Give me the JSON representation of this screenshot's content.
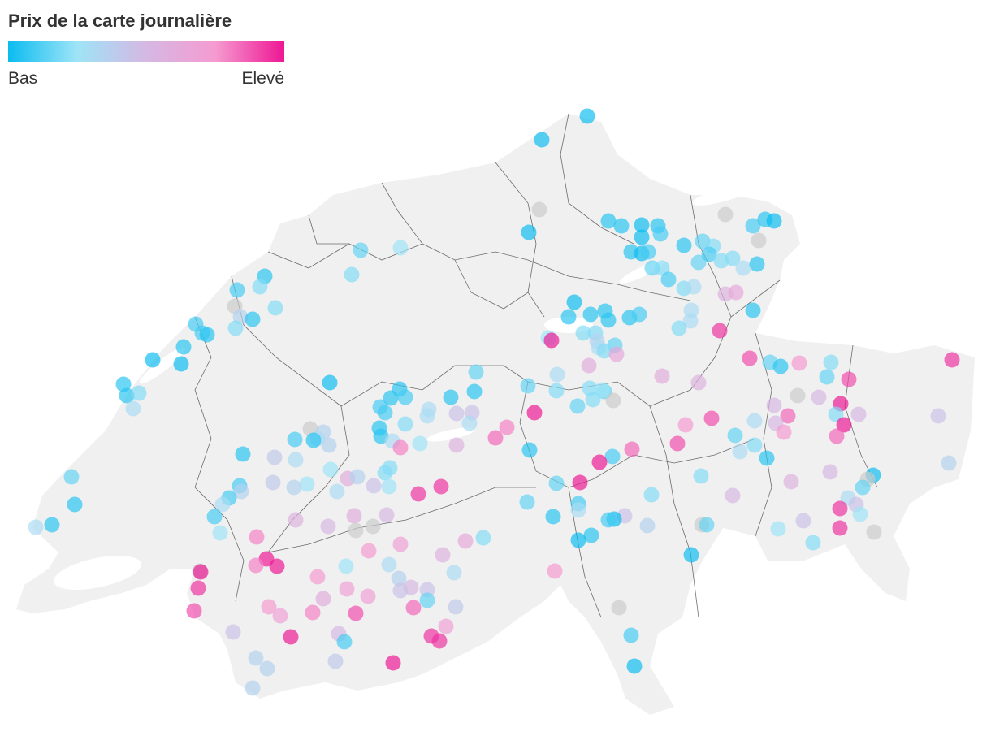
{
  "legend": {
    "title": "Prix de la carte journalière",
    "low_label": "Bas",
    "high_label": "Elevé",
    "gradient_colors": [
      "#0bbcf0",
      "#9ee4f7",
      "#d5b8e3",
      "#f59bd0",
      "#ee1694"
    ]
  },
  "map": {
    "land_color": "#f0f0f0",
    "border_color": "#555555",
    "no_data_color": "#cccccc",
    "point_opacity": 0.68,
    "point_value_scale": "0 = lowest day-pass price (Bas), 1 = highest (Elevé), null = no data"
  }
}
